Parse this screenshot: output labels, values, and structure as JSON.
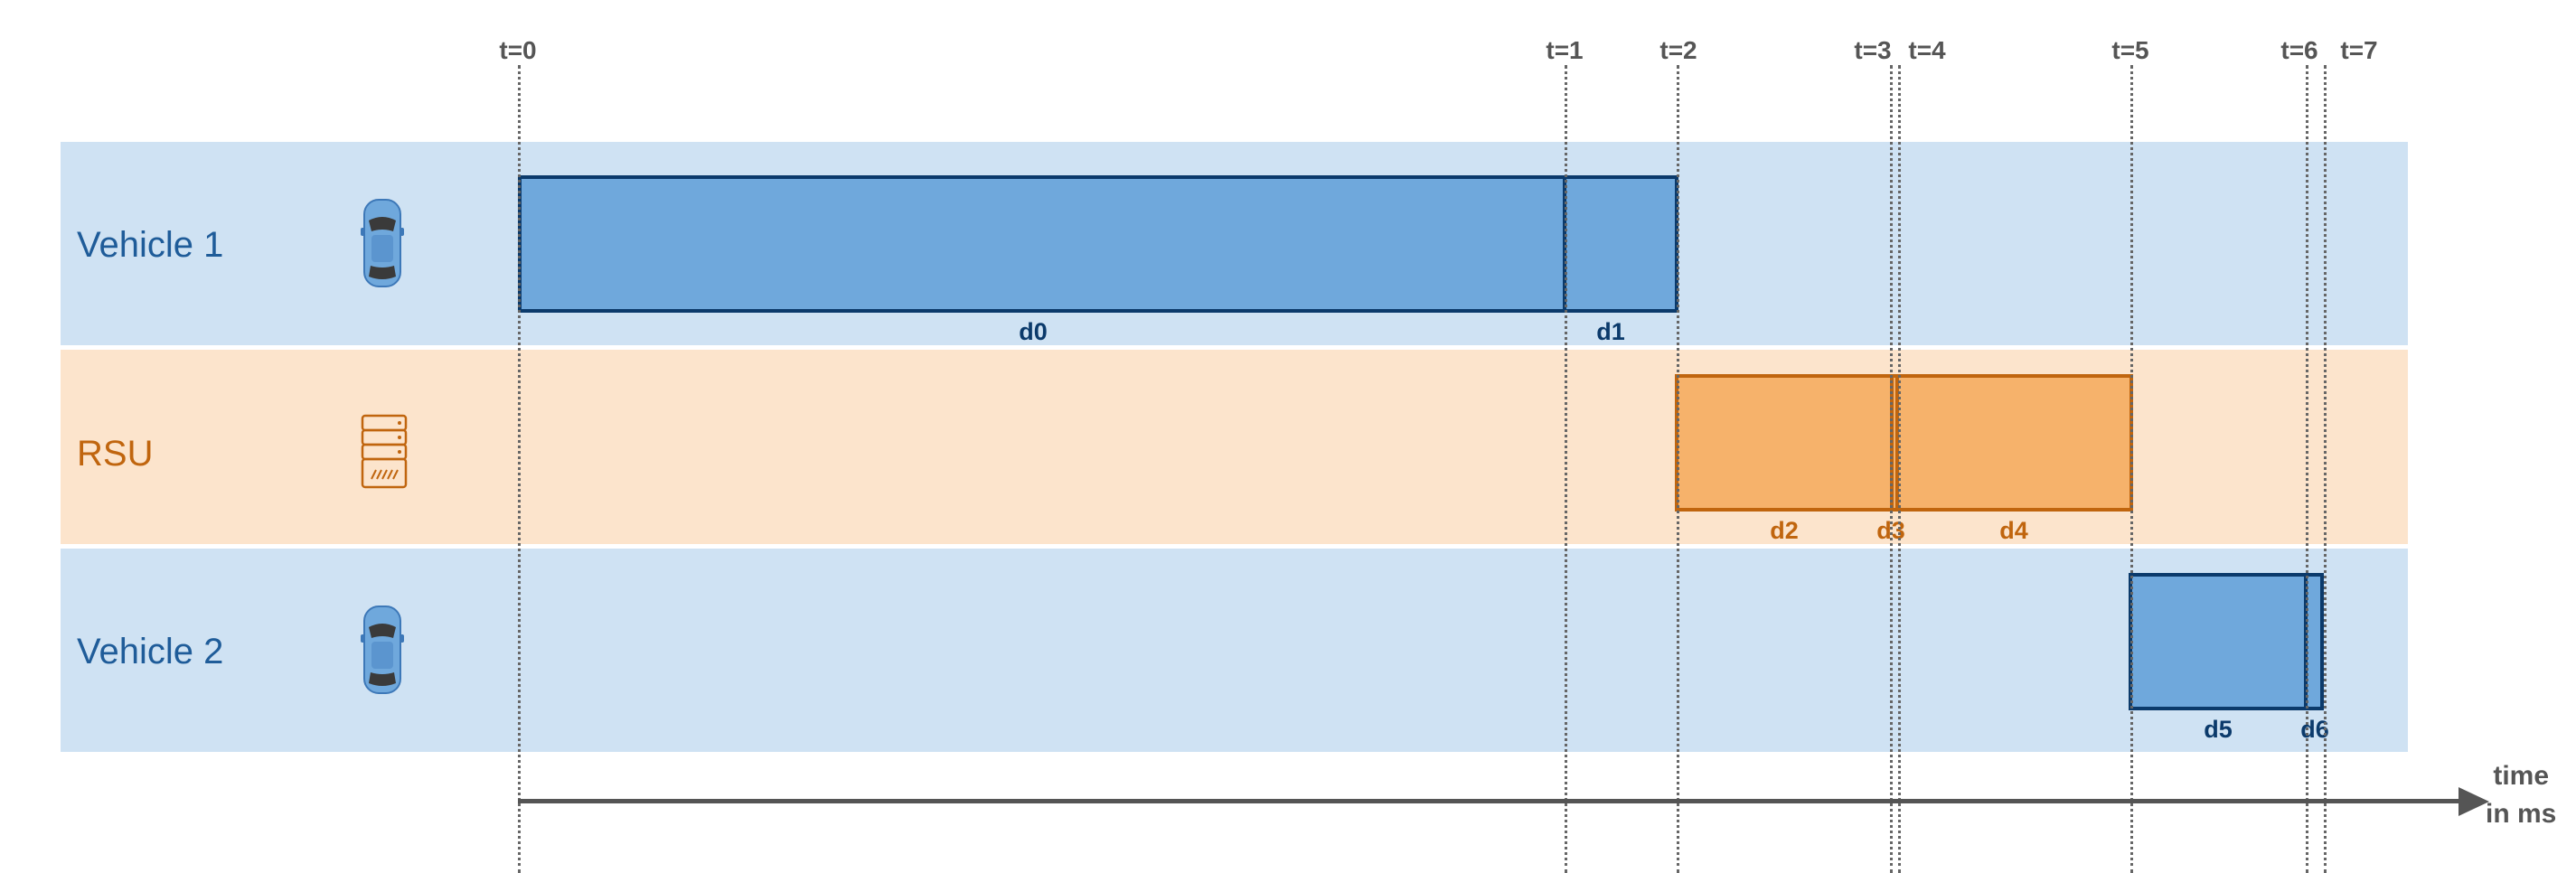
{
  "lanes": [
    {
      "id": "v1",
      "label": "Vehicle 1",
      "icon": "car-icon"
    },
    {
      "id": "rsu",
      "label": "RSU",
      "icon": "server-icon"
    },
    {
      "id": "v2",
      "label": "Vehicle 2",
      "icon": "car-icon"
    }
  ],
  "time_markers": [
    "t=0",
    "t=1",
    "t=2",
    "t=3",
    "t=4",
    "t=5",
    "t=6",
    "t=7"
  ],
  "segments": [
    {
      "label": "d0",
      "lane": "v1",
      "from": "t=0",
      "to": "t=1"
    },
    {
      "label": "d1",
      "lane": "v1",
      "from": "t=1",
      "to": "t=2"
    },
    {
      "label": "d2",
      "lane": "rsu",
      "from": "t=2",
      "to": "t=3"
    },
    {
      "label": "d3",
      "lane": "rsu",
      "from": "t=3",
      "to": "t=4"
    },
    {
      "label": "d4",
      "lane": "rsu",
      "from": "t=4",
      "to": "t=5"
    },
    {
      "label": "d5",
      "lane": "v2",
      "from": "t=5",
      "to": "t=6"
    },
    {
      "label": "d6",
      "lane": "v2",
      "from": "t=6",
      "to": "t=7"
    }
  ],
  "axis": {
    "title_line1": "time",
    "title_line2": "in ms"
  },
  "colors": {
    "vehicle_lane": "#cfe2f3",
    "rsu_lane": "#fce4cc",
    "vehicle_segment": "#6fa8dc",
    "vehicle_border": "#0b3a6b",
    "rsu_segment": "#f6b26b",
    "rsu_border": "#c0650e",
    "vehicle_text": "#1f5c99",
    "rsu_text": "#c0650e"
  }
}
